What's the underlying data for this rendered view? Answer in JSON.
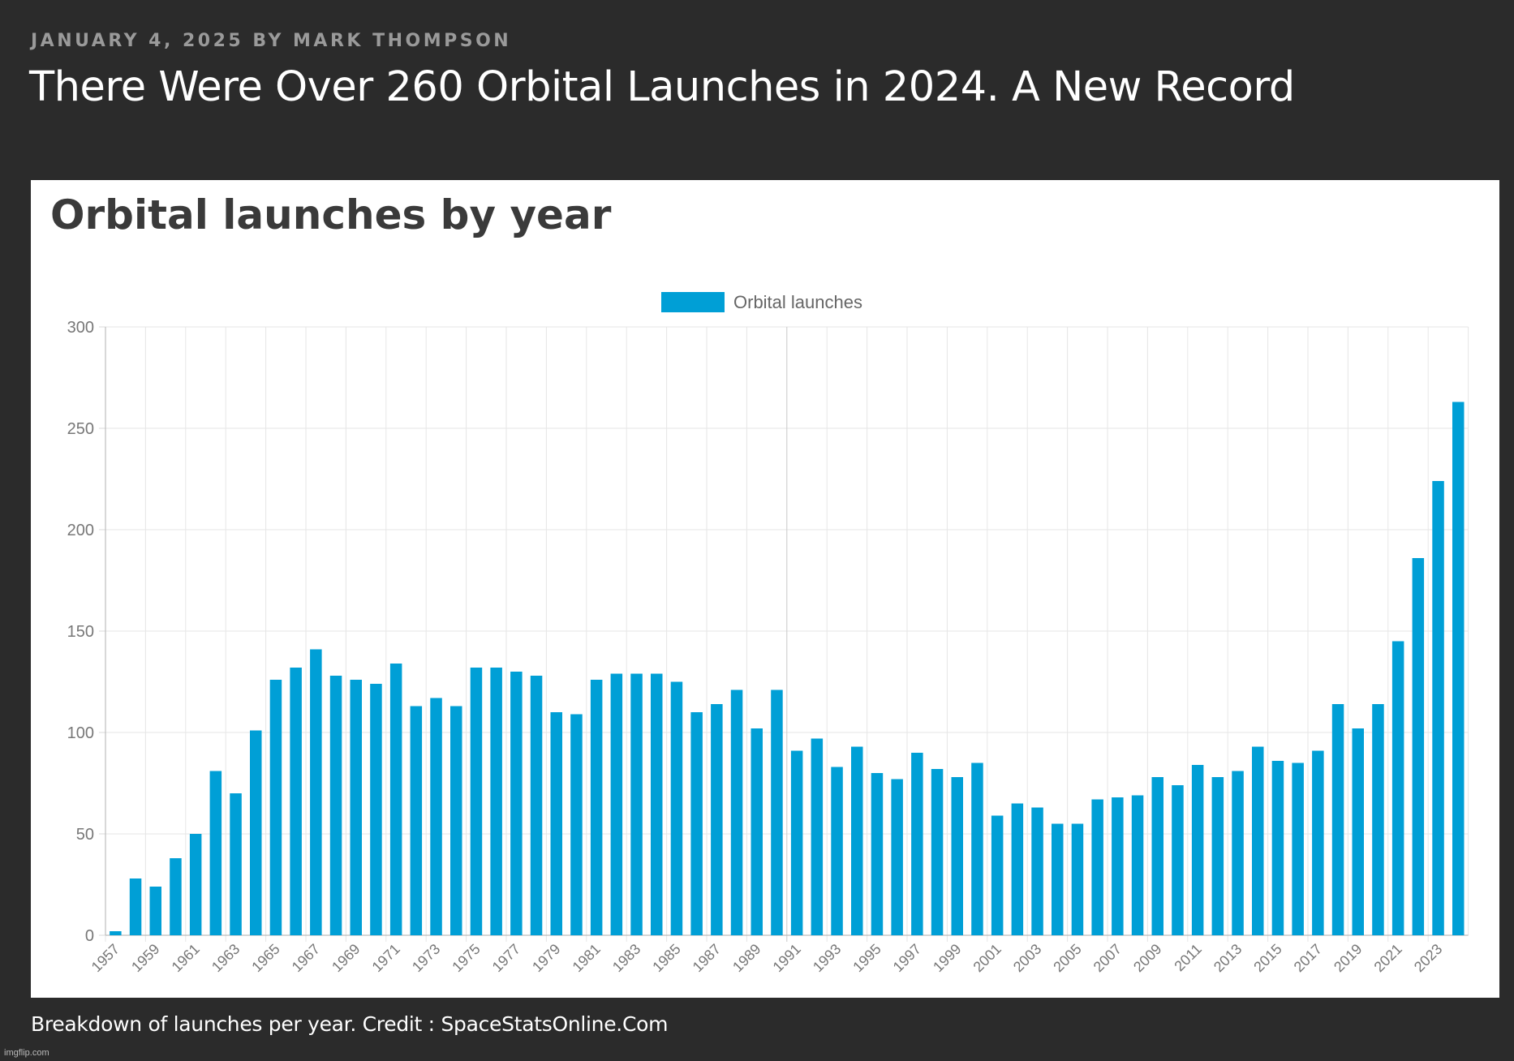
{
  "article": {
    "byline": "January 4, 2025 by Mark Thompson",
    "headline": "There Were Over 260 Orbital Launches in 2024. A New Record",
    "caption": "Breakdown of launches per year. Credit : SpaceStatsOnline.Com",
    "watermark": "imgflip.com"
  },
  "chart_data": {
    "type": "bar",
    "title": "Orbital launches by year",
    "xlabel": "",
    "ylabel": "",
    "ylim": [
      0,
      300
    ],
    "yticks": [
      0,
      50,
      100,
      150,
      200,
      250,
      300
    ],
    "grid": true,
    "legend_position": "top-center",
    "bar_color": "#009fd6",
    "categories": [
      "1957",
      "1958",
      "1959",
      "1960",
      "1961",
      "1962",
      "1963",
      "1964",
      "1965",
      "1966",
      "1967",
      "1968",
      "1969",
      "1970",
      "1971",
      "1972",
      "1973",
      "1974",
      "1975",
      "1976",
      "1977",
      "1978",
      "1979",
      "1980",
      "1981",
      "1982",
      "1983",
      "1984",
      "1985",
      "1986",
      "1987",
      "1988",
      "1989",
      "1990",
      "1991",
      "1992",
      "1993",
      "1994",
      "1995",
      "1996",
      "1997",
      "1998",
      "1999",
      "2000",
      "2001",
      "2002",
      "2003",
      "2004",
      "2005",
      "2006",
      "2007",
      "2008",
      "2009",
      "2010",
      "2011",
      "2012",
      "2013",
      "2014",
      "2015",
      "2016",
      "2017",
      "2018",
      "2019",
      "2020",
      "2021",
      "2022",
      "2023",
      "2024"
    ],
    "tick_labels": [
      "1957",
      "1959",
      "1961",
      "1963",
      "1965",
      "1967",
      "1969",
      "1971",
      "1973",
      "1975",
      "1977",
      "1979",
      "1981",
      "1983",
      "1985",
      "1987",
      "1989",
      "1991",
      "1993",
      "1995",
      "1997",
      "1999",
      "2001",
      "2003",
      "2005",
      "2007",
      "2009",
      "2011",
      "2013",
      "2015",
      "2017",
      "2019",
      "2021",
      "2023"
    ],
    "series": [
      {
        "name": "Orbital launches",
        "values": [
          2,
          28,
          24,
          38,
          50,
          81,
          70,
          101,
          126,
          132,
          141,
          128,
          126,
          124,
          134,
          113,
          117,
          113,
          132,
          132,
          130,
          128,
          110,
          109,
          126,
          129,
          129,
          129,
          125,
          110,
          114,
          121,
          102,
          121,
          91,
          97,
          83,
          93,
          80,
          77,
          90,
          82,
          78,
          85,
          59,
          65,
          63,
          55,
          55,
          67,
          68,
          69,
          78,
          74,
          84,
          78,
          81,
          93,
          86,
          85,
          91,
          114,
          102,
          114,
          145,
          186,
          224,
          263
        ]
      }
    ]
  }
}
